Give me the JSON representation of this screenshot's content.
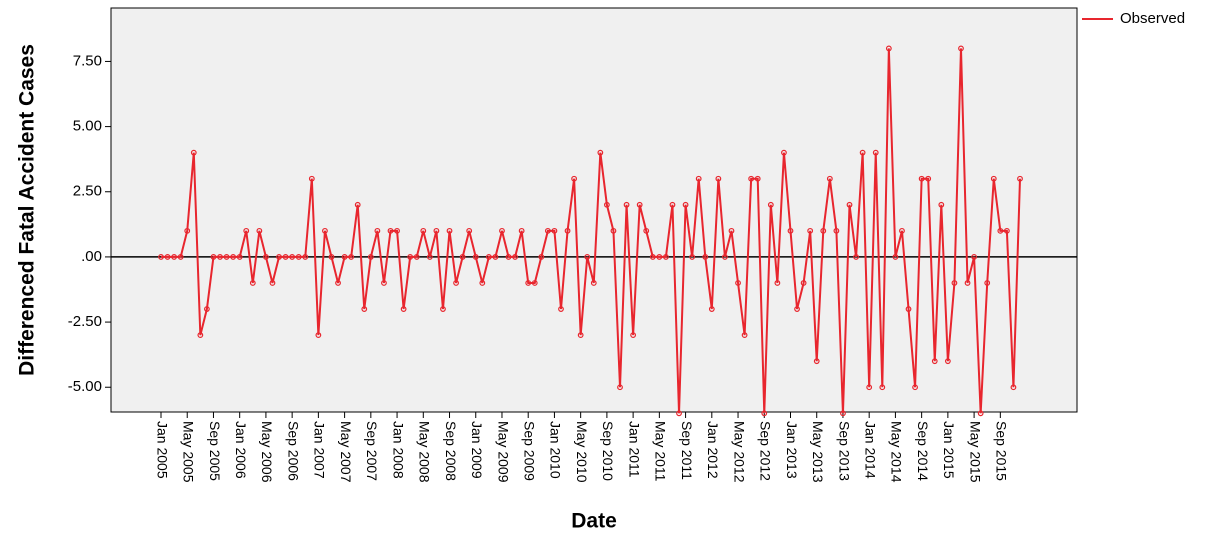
{
  "chart_data": {
    "type": "line",
    "x_label": "Date",
    "y_label": "Differenced Fatal Accident Cases",
    "categories": [
      "Jan 2005",
      null,
      null,
      null,
      "May 2005",
      null,
      null,
      null,
      "Sep 2005",
      null,
      null,
      null,
      "Jan 2006",
      null,
      null,
      null,
      "May 2006",
      null,
      null,
      null,
      "Sep 2006",
      null,
      null,
      null,
      "Jan 2007",
      null,
      null,
      null,
      "May 2007",
      null,
      null,
      null,
      "Sep 2007",
      null,
      null,
      null,
      "Jan 2008",
      null,
      null,
      null,
      "May 2008",
      null,
      null,
      null,
      "Sep 2008",
      null,
      null,
      null,
      "Jan 2009",
      null,
      null,
      null,
      "May 2009",
      null,
      null,
      null,
      "Sep 2009",
      null,
      null,
      null,
      "Jan 2010",
      null,
      null,
      null,
      "May 2010",
      null,
      null,
      null,
      "Sep 2010",
      null,
      null,
      null,
      "Jan 2011",
      null,
      null,
      null,
      "May 2011",
      null,
      null,
      null,
      "Sep 2011",
      null,
      null,
      null,
      "Jan 2012",
      null,
      null,
      null,
      "May 2012",
      null,
      null,
      null,
      "Sep 2012",
      null,
      null,
      null,
      "Jan 2013",
      null,
      null,
      null,
      "May 2013",
      null,
      null,
      null,
      "Sep 2013",
      null,
      null,
      null,
      "Jan 2014",
      null,
      null,
      null,
      "May 2014",
      null,
      null,
      null,
      "Sep 2014",
      null,
      null,
      null,
      "Jan 2015",
      null,
      null,
      null,
      "May 2015",
      null,
      null,
      null,
      "Sep 2015",
      null,
      null,
      null
    ],
    "series": [
      {
        "name": "Observed",
        "color": "#e8262e",
        "values": [
          0,
          0,
          0,
          0,
          1,
          4,
          -3,
          -2,
          0,
          0,
          0,
          0,
          0,
          1,
          -1,
          1,
          0,
          -1,
          0,
          0,
          0,
          0,
          0,
          3,
          -3,
          1,
          0,
          -1,
          0,
          0,
          2,
          -2,
          0,
          1,
          -1,
          1,
          1,
          -2,
          0,
          0,
          1,
          0,
          1,
          -2,
          1,
          -1,
          0,
          1,
          0,
          -1,
          0,
          0,
          1,
          0,
          0,
          1,
          -1,
          -1,
          0,
          1,
          1,
          -2,
          1,
          3,
          -3,
          0,
          -1,
          4,
          2,
          1,
          -5,
          2,
          -3,
          2,
          1,
          0,
          0,
          0,
          2,
          -6,
          2,
          0,
          3,
          0,
          -2,
          3,
          0,
          1,
          -1,
          -3,
          3,
          3,
          -6,
          2,
          -1,
          4,
          1,
          -2,
          -1,
          1,
          -4,
          1,
          3,
          1,
          -6,
          2,
          0,
          4,
          -5,
          4,
          -5,
          8,
          0,
          1,
          -2,
          -5,
          3,
          3,
          -4,
          2,
          -4,
          -1,
          8,
          -1,
          0,
          -6,
          -1,
          3,
          1,
          1,
          -5,
          3
        ]
      }
    ],
    "ylim": [
      -5.95,
      9.55
    ],
    "yticks": [
      {
        "value": -5,
        "label": "-5.00"
      },
      {
        "value": -2.5,
        "label": "-2.50"
      },
      {
        "value": 0,
        "label": ".00"
      },
      {
        "value": 2.5,
        "label": "2.50"
      },
      {
        "value": 5,
        "label": "5.00"
      },
      {
        "value": 7.5,
        "label": "7.50"
      }
    ],
    "reference_line": 0,
    "legend": "top-right",
    "plot_background": "#f0f0f0"
  }
}
